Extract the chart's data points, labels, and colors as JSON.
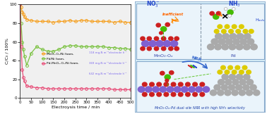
{
  "xlabel": "Electroysis time / min",
  "ylabel": "C/C₀ / 100%",
  "xlim": [
    0,
    500
  ],
  "ylim": [
    0,
    100
  ],
  "xticks": [
    0,
    50,
    100,
    150,
    200,
    250,
    300,
    350,
    400,
    450,
    500
  ],
  "yticks": [
    0,
    20,
    40,
    60,
    80,
    100
  ],
  "series": [
    {
      "label": "MnO₂-Oₓ/Ni foam,",
      "label2": "118 mg-N m⁻²electrode h⁻¹",
      "color": "#F5A020",
      "x": [
        0,
        5,
        10,
        15,
        20,
        30,
        50,
        75,
        100,
        125,
        150,
        175,
        200,
        225,
        250,
        275,
        300,
        325,
        350,
        375,
        400,
        425,
        450,
        475,
        500
      ],
      "y": [
        100,
        97,
        92,
        90,
        87,
        84,
        83,
        82,
        82,
        82,
        81,
        82,
        82,
        83,
        82,
        83,
        83,
        82,
        82,
        82,
        82,
        81,
        82,
        81,
        81
      ]
    },
    {
      "label": "Pd/Ni foam,",
      "label2": "369 mg-N m⁻²electrode h⁻¹",
      "color": "#7BC241",
      "x": [
        0,
        5,
        10,
        15,
        20,
        30,
        50,
        75,
        100,
        125,
        150,
        175,
        200,
        225,
        250,
        275,
        300,
        325,
        350,
        375,
        400,
        425,
        450,
        475,
        500
      ],
      "y": [
        100,
        80,
        60,
        52,
        45,
        35,
        48,
        55,
        52,
        50,
        50,
        52,
        55,
        56,
        56,
        55,
        55,
        55,
        55,
        55,
        54,
        54,
        53,
        53,
        52
      ]
    },
    {
      "label": "Pd-MnO₂-Oₓ/Ni foam,",
      "label2": "642 mg-N m⁻²electrode h⁻¹",
      "color": "#E8507A",
      "x": [
        0,
        5,
        10,
        15,
        20,
        30,
        50,
        75,
        100,
        125,
        150,
        175,
        200,
        225,
        250,
        275,
        300,
        325,
        350,
        375,
        400,
        425,
        450,
        475,
        500
      ],
      "y": [
        100,
        55,
        30,
        22,
        18,
        13,
        12,
        11,
        11,
        10,
        10,
        10,
        10,
        10,
        10,
        10,
        10,
        10,
        10,
        10,
        10,
        9,
        9,
        9,
        9
      ]
    }
  ],
  "bg_color": "#F0F0F0",
  "right_panel_bg": "#D8EEF8",
  "label2_color": "#7B68EE",
  "mn_color": "#8060D0",
  "o_color": "#CC2020",
  "green_color": "#44BB00",
  "pd_color": "#AAAAAA",
  "yellow_color": "#DDCC00",
  "border_color": "#88AACC"
}
